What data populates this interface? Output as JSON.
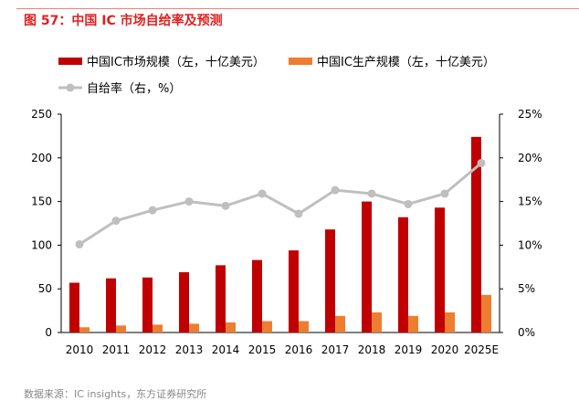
{
  "title": "图 57：中国 IC 市场自给率及预测",
  "source": "数据来源：IC insights，东方证券研究所",
  "colors": {
    "market": "#c00000",
    "production": "#ed7d31",
    "ratio": "#bfbfbf",
    "title": "#e02020"
  },
  "chart_data": {
    "type": "bar+line",
    "title": "中国 IC 市场自给率及预测",
    "categories": [
      "2010",
      "2011",
      "2012",
      "2013",
      "2014",
      "2015",
      "2016",
      "2017",
      "2018",
      "2019",
      "2020",
      "2025E"
    ],
    "series": [
      {
        "name": "中国IC市场规模（左，十亿美元）",
        "type": "bar",
        "axis": "left",
        "values": [
          57,
          62,
          63,
          69,
          77,
          83,
          94,
          118,
          150,
          132,
          143,
          224
        ]
      },
      {
        "name": "中国IC生产规模（左，十亿美元）",
        "type": "bar",
        "axis": "left",
        "values": [
          6,
          8,
          9,
          10,
          11.5,
          13,
          13,
          19,
          23,
          19,
          23,
          43
        ]
      },
      {
        "name": "自给率（右，%）",
        "type": "line",
        "axis": "right",
        "values": [
          10.1,
          12.8,
          14.0,
          15.0,
          14.5,
          15.9,
          13.6,
          16.3,
          15.9,
          14.7,
          15.9,
          19.4
        ]
      }
    ],
    "ylim_left": [
      0,
      250
    ],
    "yticks_left": [
      "0",
      "50",
      "100",
      "150",
      "200",
      "250"
    ],
    "ylim_right": [
      0,
      25
    ],
    "yticks_right": [
      "0%",
      "5%",
      "10%",
      "15%",
      "20%",
      "25%"
    ],
    "legend_position": "top",
    "grid": false
  }
}
